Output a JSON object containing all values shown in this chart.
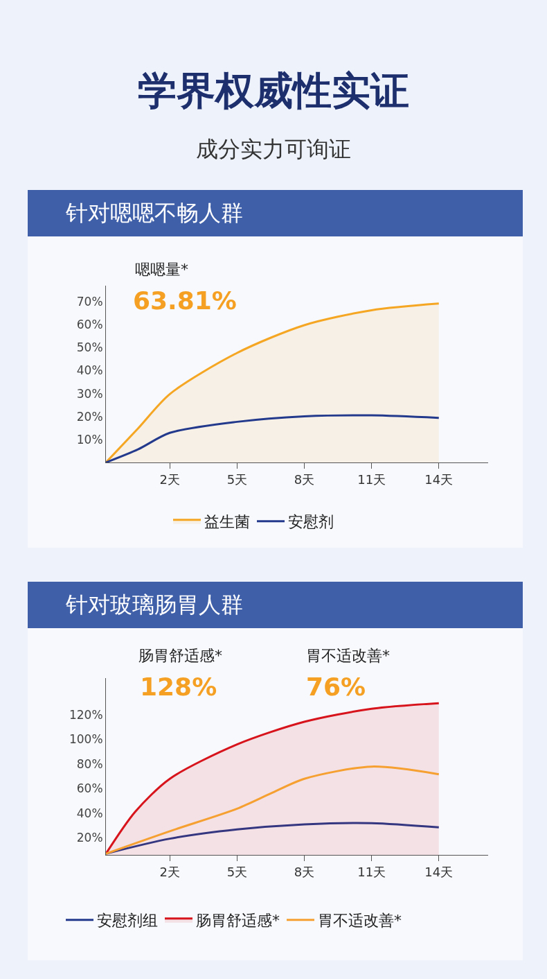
{
  "chart_data": [
    {
      "type": "line",
      "title": "学界权威性实证",
      "subtitle": "成分实力可询证",
      "annotations": [
        "针对嗯嗯不畅人群",
        "嗯嗯量*",
        "63.81%"
      ],
      "xlim": [
        -0.85,
        16.2
      ],
      "xticks": [
        {
          "value": 2,
          "label": "2天"
        },
        {
          "value": 5,
          "label": "5天"
        },
        {
          "value": 8,
          "label": "8天"
        },
        {
          "value": 11,
          "label": "11天"
        },
        {
          "value": 14,
          "label": "14天"
        }
      ],
      "ylim": [
        0,
        77
      ],
      "yticks": [
        {
          "value": 10,
          "label": "10%"
        },
        {
          "value": 20,
          "label": "20%"
        },
        {
          "value": 30,
          "label": "30%"
        },
        {
          "value": 40,
          "label": "40%"
        },
        {
          "value": 50,
          "label": "50%"
        },
        {
          "value": 60,
          "label": "60%"
        },
        {
          "value": 70,
          "label": "70%"
        }
      ],
      "legend": "bottom",
      "series": [
        {
          "name": "益生菌",
          "type": "area",
          "color": "#f5a623",
          "x": [
            -0.85,
            0.58,
            2,
            5,
            8,
            11,
            14
          ],
          "values": [
            0,
            14.8,
            29.8,
            47.7,
            59.8,
            66.3,
            69.2
          ]
        },
        {
          "name": "安慰剂",
          "color": "#233a8c",
          "x": [
            -0.85,
            0.58,
            2,
            5,
            8,
            11,
            14
          ],
          "values": [
            0,
            5.7,
            12.9,
            17.7,
            20.1,
            20.5,
            19.4
          ]
        }
      ]
    },
    {
      "type": "line",
      "title": "针对玻璃肠胃人群",
      "annotations": [
        "肠胃舒适感*",
        "128%",
        "胃不适改善*",
        "76%"
      ],
      "xlim": [
        -0.85,
        16.2
      ],
      "xticks": [
        {
          "value": 2,
          "label": "2天"
        },
        {
          "value": 5,
          "label": "5天"
        },
        {
          "value": 8,
          "label": "8天"
        },
        {
          "value": 11,
          "label": "11天"
        },
        {
          "value": 14,
          "label": "14天"
        }
      ],
      "ylim": [
        6,
        150
      ],
      "yticks": [
        {
          "value": 20,
          "label": "20%"
        },
        {
          "value": 40,
          "label": "40%"
        },
        {
          "value": 60,
          "label": "60%"
        },
        {
          "value": 80,
          "label": "80%"
        },
        {
          "value": 100,
          "label": "100%"
        },
        {
          "value": 120,
          "label": "120%"
        }
      ],
      "legend": "bottom",
      "series": [
        {
          "name": "安慰剂组",
          "color": "#233a8c",
          "x": [
            -0.85,
            2,
            5,
            8,
            11,
            14
          ],
          "values": [
            7,
            19.2,
            26.7,
            30.9,
            31.9,
            28.4
          ]
        },
        {
          "name": "肠胃舒适感*",
          "type": "area",
          "color": "#d7131b",
          "x": [
            -0.85,
            0.45,
            2,
            5,
            8,
            11,
            14
          ],
          "values": [
            7,
            41,
            68,
            96,
            114.4,
            125,
            129.6
          ]
        },
        {
          "name": "胃不适改善*",
          "color": "#f5a030",
          "x": [
            -0.85,
            2,
            5,
            6.5,
            8,
            11,
            14
          ],
          "values": [
            7,
            25.3,
            43.6,
            56,
            68,
            77.9,
            71.7
          ]
        }
      ]
    }
  ]
}
